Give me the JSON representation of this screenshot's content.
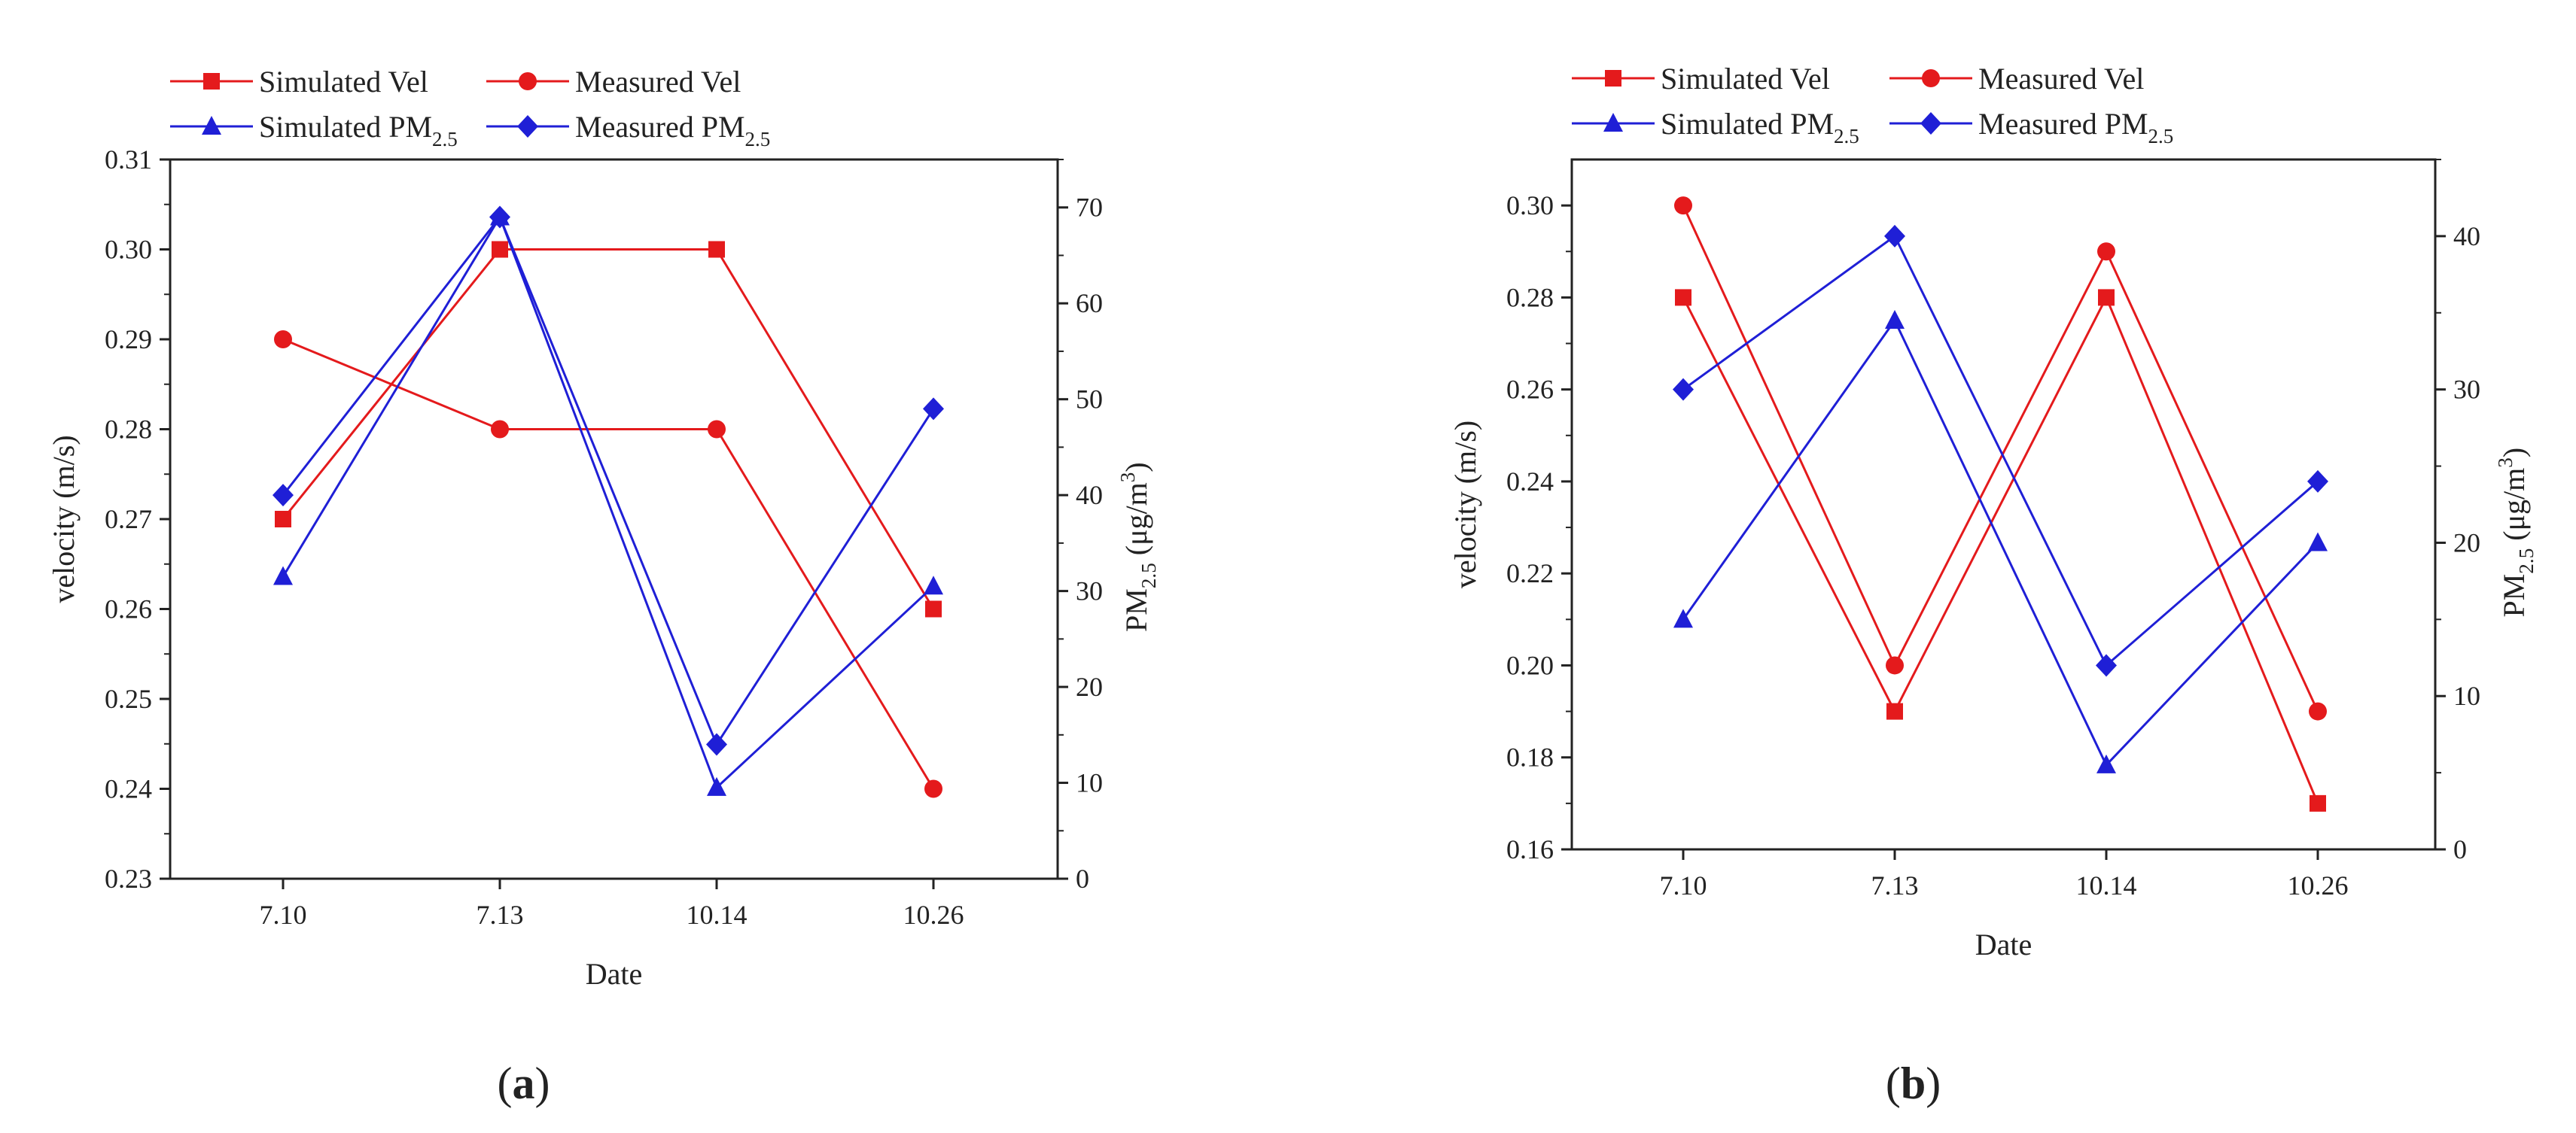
{
  "chart_data": [
    {
      "type": "line",
      "panel_label": "(a)",
      "categories": [
        "7.10",
        "7.13",
        "10.14",
        "10.26"
      ],
      "xlabel": "Date",
      "ylabel_left": "velocity (m/s)",
      "ylabel_right": "PM2.5 (μg/m3)",
      "ylim_left": [
        0.23,
        0.31
      ],
      "yticks_left": [
        "0.23",
        "0.24",
        "0.25",
        "0.26",
        "0.27",
        "0.28",
        "0.29",
        "0.30",
        "0.31"
      ],
      "ylim_right": [
        0,
        75
      ],
      "yticks_right": [
        "0",
        "10",
        "20",
        "30",
        "40",
        "50",
        "60",
        "70"
      ],
      "series": [
        {
          "name": "Simulated Vel",
          "axis": "left",
          "color": "#e41a1c",
          "marker": "square",
          "values": [
            0.27,
            0.3,
            0.3,
            0.26
          ]
        },
        {
          "name": "Measured Vel",
          "axis": "left",
          "color": "#e41a1c",
          "marker": "circle",
          "values": [
            0.29,
            0.28,
            0.28,
            0.24
          ]
        },
        {
          "name": "Simulated PM2.5",
          "axis": "right",
          "color": "#1f1fd6",
          "marker": "triangle",
          "values": [
            31.5,
            69,
            9.5,
            30.5
          ]
        },
        {
          "name": "Measured PM2.5",
          "axis": "right",
          "color": "#1f1fd6",
          "marker": "diamond",
          "values": [
            40,
            69,
            14,
            49
          ]
        }
      ]
    },
    {
      "type": "line",
      "panel_label": "(b)",
      "categories": [
        "7.10",
        "7.13",
        "10.14",
        "10.26"
      ],
      "xlabel": "Date",
      "ylabel_left": "velocity (m/s)",
      "ylabel_right": "PM2.5 (μg/m3)",
      "ylim_left": [
        0.16,
        0.31
      ],
      "yticks_left": [
        "0.16",
        "0.18",
        "0.20",
        "0.22",
        "0.24",
        "0.26",
        "0.28",
        "0.30"
      ],
      "ylim_right": [
        0,
        45
      ],
      "yticks_right": [
        "0",
        "10",
        "20",
        "30",
        "40"
      ],
      "series": [
        {
          "name": "Simulated Vel",
          "axis": "left",
          "color": "#e41a1c",
          "marker": "square",
          "values": [
            0.28,
            0.19,
            0.28,
            0.17
          ]
        },
        {
          "name": "Measured Vel",
          "axis": "left",
          "color": "#e41a1c",
          "marker": "circle",
          "values": [
            0.3,
            0.2,
            0.29,
            0.19
          ]
        },
        {
          "name": "Simulated PM2.5",
          "axis": "right",
          "color": "#1f1fd6",
          "marker": "triangle",
          "values": [
            15,
            34.5,
            5.5,
            20
          ]
        },
        {
          "name": "Measured PM2.5",
          "axis": "right",
          "color": "#1f1fd6",
          "marker": "diamond",
          "values": [
            30,
            40,
            12,
            24
          ]
        }
      ]
    }
  ]
}
